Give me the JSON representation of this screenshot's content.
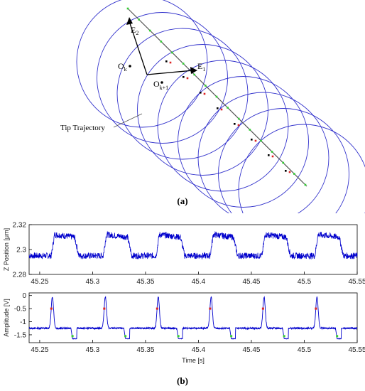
{
  "panel_a": {
    "caption": "(a)",
    "labels": {
      "e2": "E",
      "e2_sub": "2",
      "e1": "E",
      "e1_sub": "1",
      "ok": "O",
      "ok_sub": "k",
      "ok1": "O",
      "ok1_sub": "k+1",
      "trajectory": "Tip Trajectory"
    },
    "colors": {
      "circle": "#3333cc",
      "trajectory": "#555555",
      "arrow": "#000000",
      "green_marker": "#33cc33",
      "red_marker": "#dd2222",
      "black_marker": "#000000"
    }
  },
  "panel_b": {
    "caption": "(b)"
  },
  "chart_data": [
    {
      "type": "line",
      "xlabel": "",
      "ylabel": "Z Position [μm]",
      "xlim": [
        45.24,
        45.55
      ],
      "ylim": [
        2.28,
        2.32
      ],
      "xticks": [
        45.25,
        45.3,
        45.35,
        45.4,
        45.45,
        45.5,
        45.55
      ],
      "yticks": [
        2.28,
        2.3,
        2.32
      ],
      "line_color": "#0000cc",
      "period": 0.05,
      "low_level": 2.295,
      "high_level": 2.312,
      "rise_times": [
        45.264,
        45.313,
        45.363,
        45.414,
        45.463,
        45.513
      ],
      "fall_times": [
        45.283,
        45.333,
        45.383,
        45.433,
        45.483,
        45.533
      ]
    },
    {
      "type": "line",
      "xlabel": "Time [s]",
      "ylabel": "Amplitude [V]",
      "xlim": [
        45.24,
        45.55
      ],
      "ylim": [
        -1.8,
        0.1
      ],
      "xticks": [
        45.25,
        45.3,
        45.35,
        45.4,
        45.45,
        45.5,
        45.55
      ],
      "yticks": [
        0,
        -0.5,
        -1,
        -1.5
      ],
      "line_color": "#0000cc",
      "baseline": -1.25,
      "peak": -0.05,
      "dip": -1.65,
      "peak_times": [
        45.262,
        45.312,
        45.362,
        45.412,
        45.462,
        45.512
      ],
      "dip_starts": [
        45.281,
        45.331,
        45.381,
        45.431,
        45.481,
        45.531
      ],
      "red_markers": [
        [
          45.261,
          -0.5
        ],
        [
          45.311,
          -0.5
        ],
        [
          45.361,
          -0.5
        ],
        [
          45.411,
          -0.5
        ],
        [
          45.461,
          -0.5
        ],
        [
          45.511,
          -0.5
        ]
      ],
      "green_markers": [
        [
          45.281,
          -1.55
        ],
        [
          45.331,
          -1.55
        ],
        [
          45.381,
          -1.55
        ],
        [
          45.431,
          -1.55
        ],
        [
          45.481,
          -1.55
        ],
        [
          45.531,
          -1.55
        ]
      ]
    }
  ]
}
